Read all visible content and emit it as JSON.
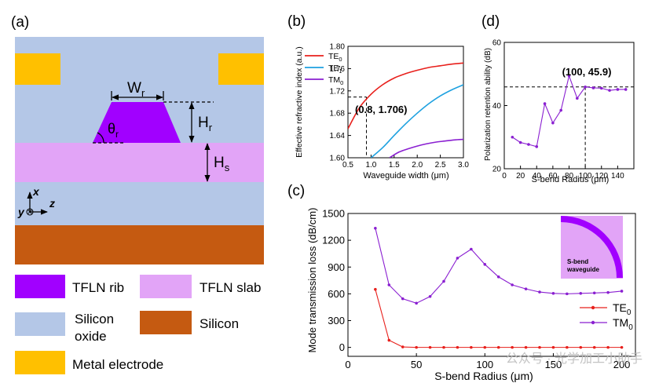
{
  "panel_a": {
    "panel_label": "(a)",
    "labels": {
      "wr": "W",
      "wr_sub": "r",
      "hr": "H",
      "hr_sub": "r",
      "hs": "H",
      "hs_sub": "s",
      "theta": "θ",
      "theta_sub": "r",
      "axis_x": "x",
      "axis_y": "y",
      "axis_z": "z"
    },
    "legend": [
      {
        "key": "rib",
        "label": "TFLN rib",
        "color": "#a100ff"
      },
      {
        "key": "slab",
        "label": "TFLN slab",
        "color": "#e2a4f7"
      },
      {
        "key": "oxide",
        "label": "Silicon oxide",
        "label_line1": "Silicon",
        "label_line2": "oxide",
        "color": "#b4c7e7"
      },
      {
        "key": "silicon",
        "label": "Silicon",
        "color": "#c55a11"
      },
      {
        "key": "electrode",
        "label": "Metal electrode",
        "color": "#ffc000"
      }
    ]
  },
  "chart_data": [
    {
      "panel_label": "(b)",
      "type": "line",
      "title": "",
      "xlabel": "Waveguide width (μm)",
      "ylabel": "Effective refractive index (a.u.)",
      "xlim": [
        0.5,
        3.0
      ],
      "ylim": [
        1.6,
        1.8
      ],
      "xticks": [
        "0.5",
        "1.0",
        "1.5",
        "2.0",
        "2.5",
        "3.0"
      ],
      "yticks": [
        "1.60",
        "1.64",
        "1.68",
        "1.72",
        "1.76",
        "1.80"
      ],
      "legend_position": "top-left",
      "grid": false,
      "series": [
        {
          "name": "TE0",
          "label_main": "TE",
          "label_sub": "0",
          "color": "#e8201c",
          "x": [
            0.5,
            0.75,
            1.0,
            1.25,
            1.5,
            1.75,
            2.0,
            2.25,
            2.5,
            2.75,
            3.0
          ],
          "y": [
            1.652,
            1.69,
            1.714,
            1.731,
            1.743,
            1.751,
            1.757,
            1.762,
            1.765,
            1.768,
            1.77
          ]
        },
        {
          "name": "TE1",
          "label_main": "TE",
          "label_sub": "1",
          "color": "#1ea1e0",
          "x": [
            1.0,
            1.25,
            1.5,
            1.75,
            2.0,
            2.25,
            2.5,
            2.75,
            3.0
          ],
          "y": [
            1.6,
            1.618,
            1.64,
            1.661,
            1.68,
            1.697,
            1.711,
            1.722,
            1.731
          ]
        },
        {
          "name": "TM0",
          "label_main": "TM",
          "label_sub": "0",
          "color": "#8a1fd1",
          "x": [
            1.4,
            1.6,
            1.8,
            2.0,
            2.2,
            2.4,
            2.6,
            2.8,
            3.0
          ],
          "y": [
            1.6,
            1.61,
            1.616,
            1.621,
            1.625,
            1.628,
            1.63,
            1.632,
            1.633
          ]
        }
      ],
      "annotation": {
        "text": "(0.8, 1.706)",
        "x": 0.9,
        "y": 1.709
      }
    },
    {
      "panel_label": "(c)",
      "type": "line",
      "title": "",
      "xlabel": "S-bend Radius (μm)",
      "ylabel": "Mode transmission loss (dB/cm)",
      "xlim": [
        0,
        210
      ],
      "ylim": [
        -100,
        1500
      ],
      "xticks": [
        "0",
        "50",
        "100",
        "150",
        "200"
      ],
      "yticks": [
        "0",
        "300",
        "600",
        "900",
        "1200",
        "1500"
      ],
      "legend_position": "bottom-right",
      "grid": false,
      "inset_label_line1": "S-bend",
      "inset_label_line2": "waveguide",
      "series": [
        {
          "name": "TE0",
          "label_main": "TE",
          "label_sub": "0",
          "color": "#e8201c",
          "x": [
            20,
            30,
            40,
            50,
            60,
            70,
            80,
            90,
            100,
            110,
            120,
            130,
            140,
            150,
            160,
            170,
            180,
            190,
            200
          ],
          "y": [
            650,
            80,
            5,
            0,
            0,
            0,
            0,
            0,
            0,
            0,
            0,
            0,
            0,
            0,
            0,
            0,
            0,
            0,
            0
          ]
        },
        {
          "name": "TM0",
          "label_main": "TM",
          "label_sub": "0",
          "color": "#8a1fd1",
          "x": [
            20,
            30,
            40,
            50,
            60,
            70,
            80,
            90,
            100,
            110,
            120,
            130,
            140,
            150,
            160,
            170,
            180,
            190,
            200
          ],
          "y": [
            1335,
            700,
            545,
            495,
            570,
            740,
            1000,
            1100,
            930,
            790,
            700,
            655,
            620,
            605,
            600,
            605,
            610,
            615,
            630
          ]
        }
      ]
    },
    {
      "panel_label": "(d)",
      "type": "line",
      "title": "",
      "xlabel": "S-bend Radius (μm)",
      "ylabel": "Polarization retention ability (dB)",
      "xlim": [
        0,
        160
      ],
      "ylim": [
        20,
        60
      ],
      "xticks": [
        "0",
        "20",
        "40",
        "60",
        "80",
        "100",
        "120",
        "140"
      ],
      "yticks": [
        "20",
        "40",
        "60"
      ],
      "grid": false,
      "series": [
        {
          "name": "",
          "color": "#8a1fd1",
          "x": [
            10,
            20,
            30,
            40,
            50,
            60,
            70,
            80,
            90,
            100,
            110,
            120,
            130,
            140,
            150
          ],
          "y": [
            30.0,
            28.3,
            27.7,
            27.0,
            40.6,
            34.5,
            38.5,
            49.4,
            42.3,
            45.9,
            45.6,
            45.5,
            44.8,
            45.1,
            45.1
          ]
        }
      ],
      "annotation": {
        "text": "(100, 45.9)",
        "x": 100,
        "y": 45.9
      }
    }
  ],
  "watermark": "公众号 · 光学加工小助手"
}
